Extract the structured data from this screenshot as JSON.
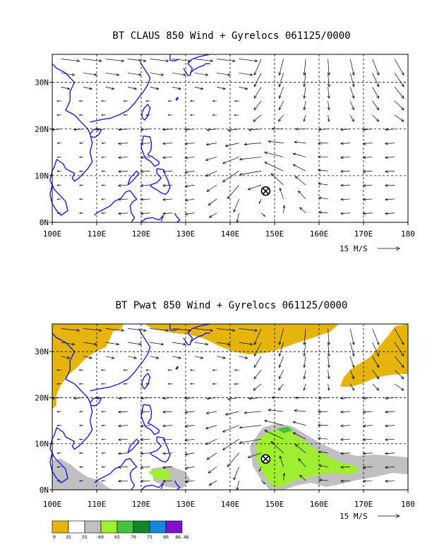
{
  "panels": [
    {
      "id": "top",
      "title": "BT CLAUS 850 Wind + Gyrelocs 061125/0000",
      "x_ticks": [
        "100E",
        "110E",
        "120E",
        "130E",
        "140E",
        "150E",
        "160E",
        "170E",
        "180"
      ],
      "y_ticks": [
        "0N",
        "10N",
        "20N",
        "30N"
      ],
      "lon_range": [
        100,
        180
      ],
      "lat_range": [
        0,
        36
      ],
      "reference_vector": "15 M/S",
      "gyre_location": {
        "lon": 148,
        "lat": 6.7
      },
      "shaded": false
    },
    {
      "id": "bottom",
      "title": "BT Pwat 850 Wind + Gyrelocs 061125/0000",
      "x_ticks": [
        "100E",
        "110E",
        "120E",
        "130E",
        "140E",
        "150E",
        "160E",
        "170E",
        "180"
      ],
      "y_ticks": [
        "0N",
        "10N",
        "20N",
        "30N"
      ],
      "lon_range": [
        100,
        180
      ],
      "lat_range": [
        0,
        36
      ],
      "reference_vector": "15 M/S",
      "gyre_location": {
        "lon": 148,
        "lat": 6.7
      },
      "shaded": true
    }
  ],
  "colorbar": {
    "colors": [
      "#e6b50d",
      "#ffffff",
      "#c0c0c0",
      "#a0ee30",
      "#46c33a",
      "#13852a",
      "#1489d9",
      "#8112cb"
    ],
    "labels": [
      "0",
      "35",
      "55",
      "60",
      "65",
      "70",
      "75",
      "80",
      "86.46"
    ]
  },
  "colors": {
    "coast": "#1a1aee",
    "arrow": "#000000"
  }
}
